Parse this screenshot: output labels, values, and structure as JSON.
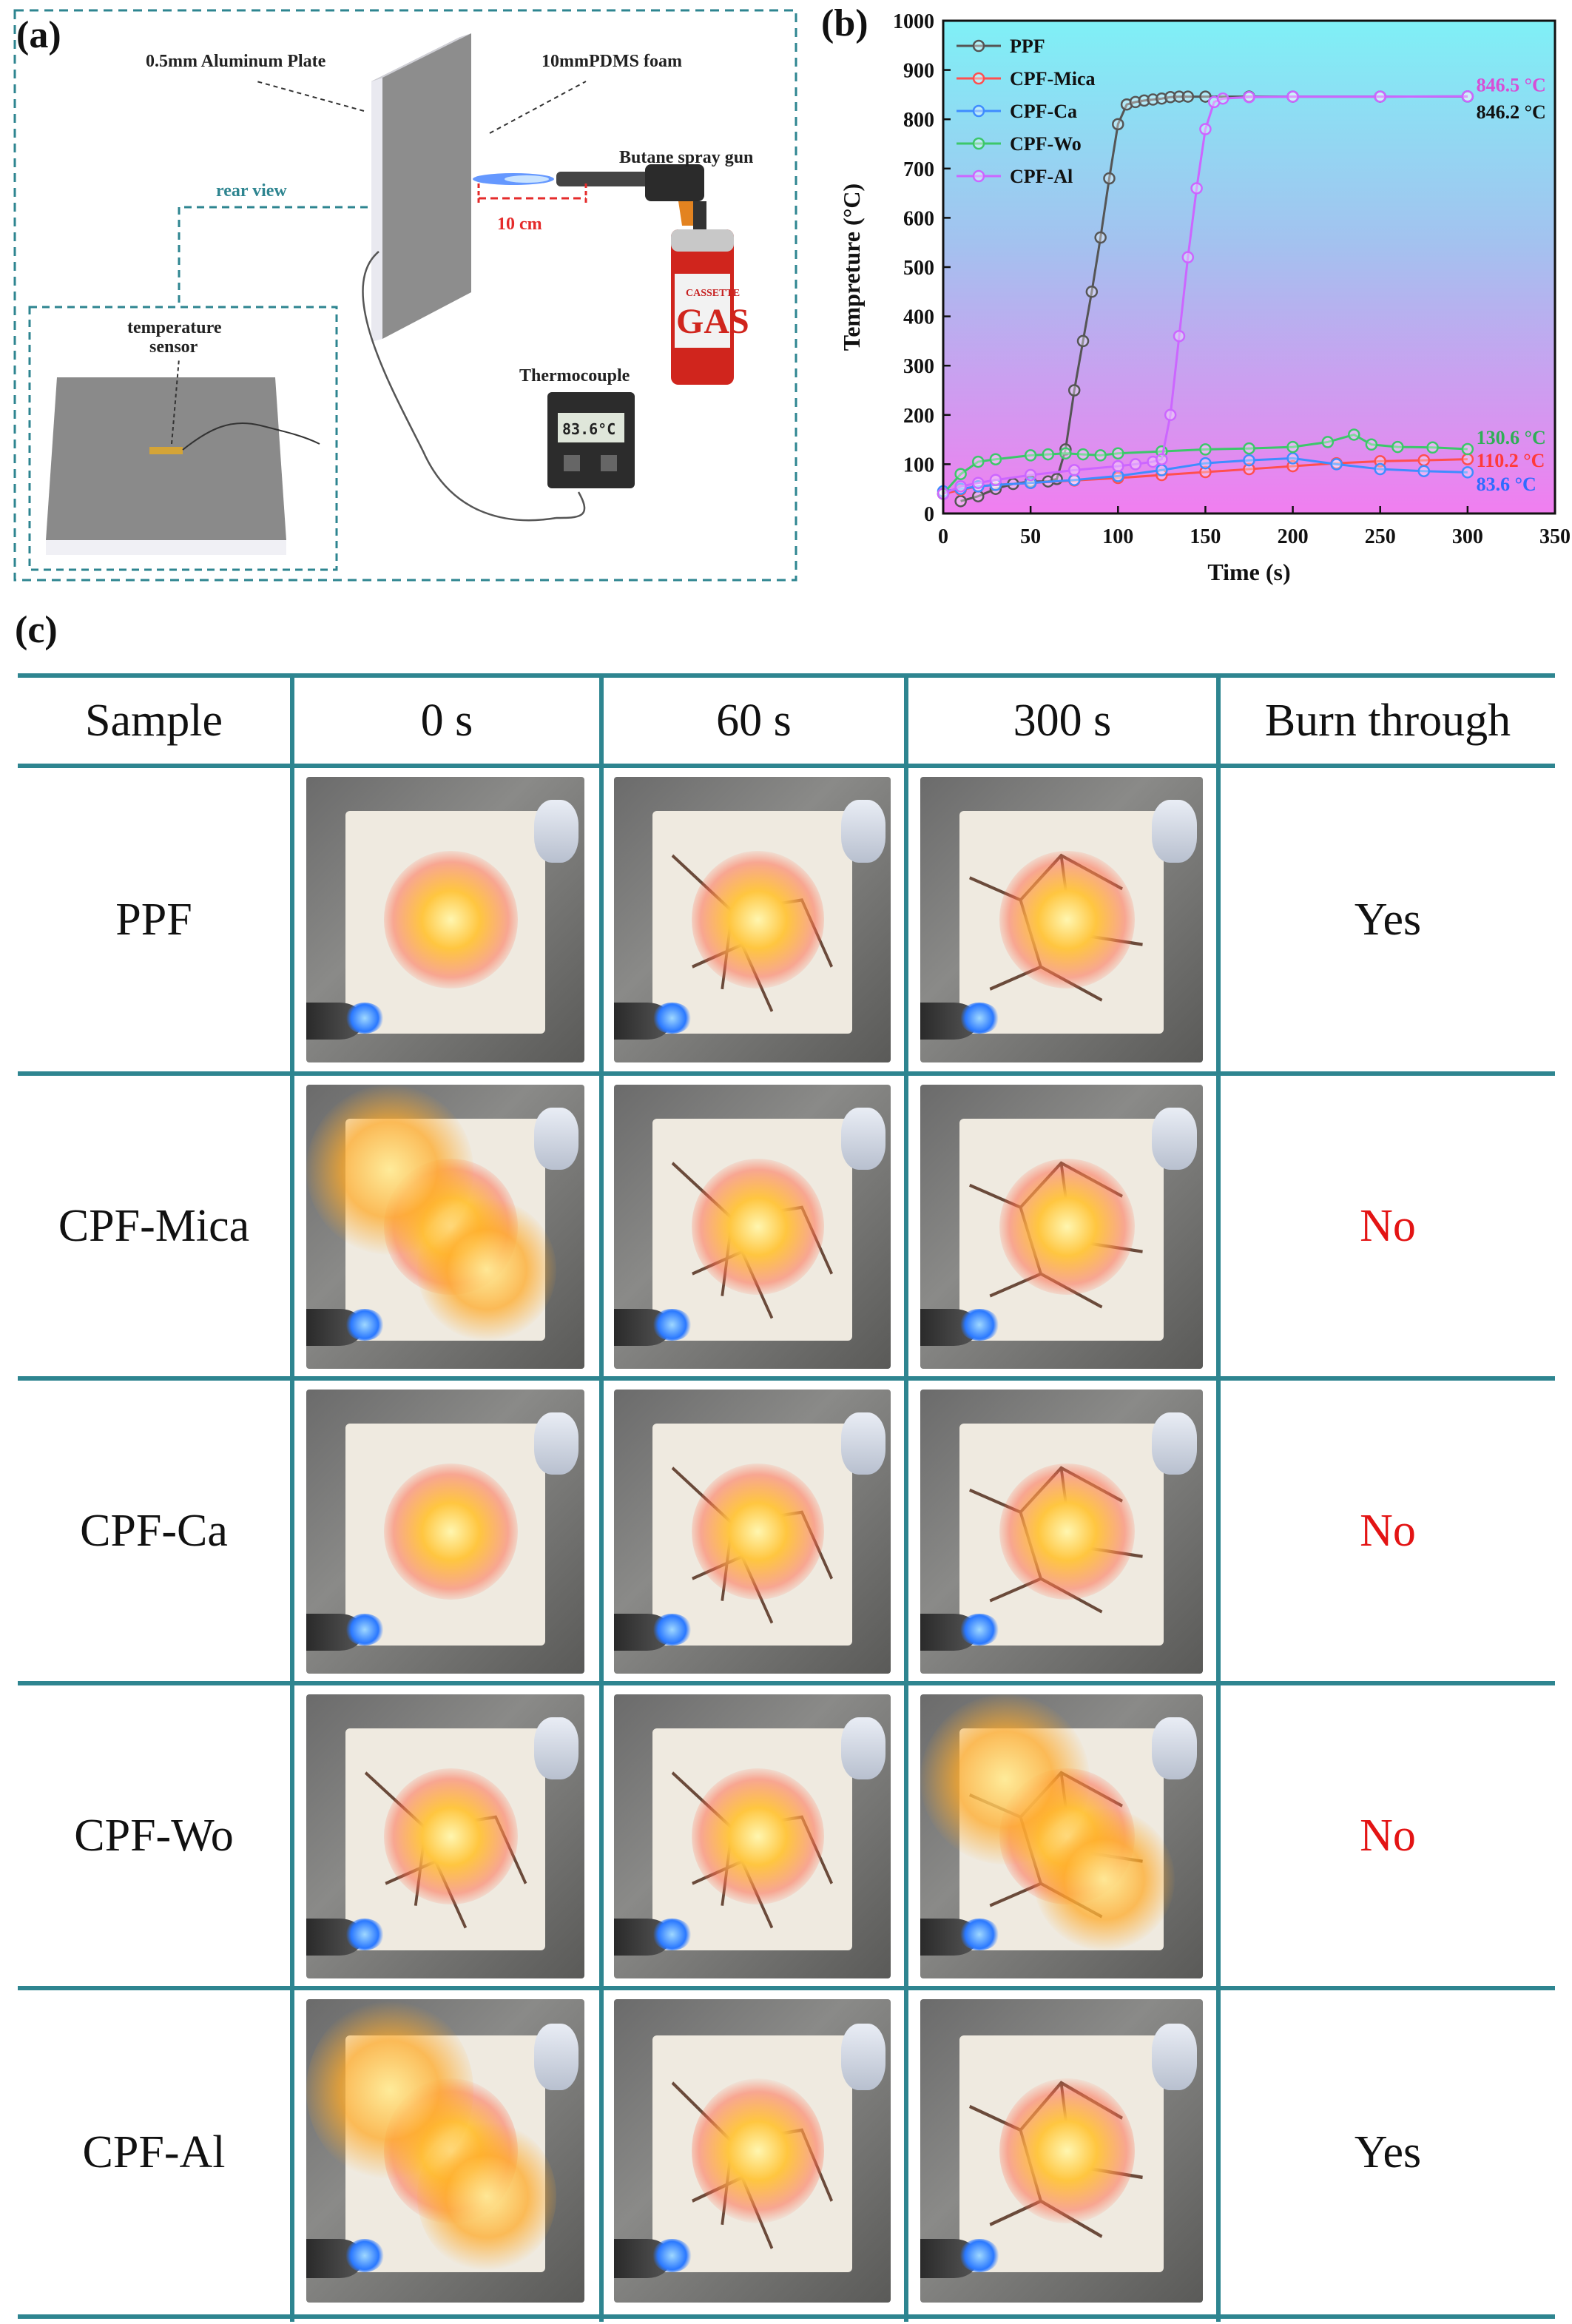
{
  "panel_labels": {
    "a": "(a)",
    "b": "(b)",
    "c": "(c)"
  },
  "setup": {
    "aluminum_plate": "0.5mm Aluminum Plate",
    "foam": "10mmPDMS  foam",
    "spray_gun": "Butane spray gun",
    "distance": "10 cm",
    "rear_view": "rear view",
    "sensor_line1": "temperature",
    "sensor_line2": "sensor",
    "thermocouple": "Thermocouple",
    "display_value": "83.6°C",
    "can_text1": "CASSETTE",
    "can_text2": "GAS"
  },
  "chart_data": {
    "type": "line",
    "xlabel": "Time (s)",
    "ylabel": "Tempreture (°C)",
    "xlim": [
      0,
      350
    ],
    "ylim": [
      0,
      1000
    ],
    "xticks": [
      0,
      50,
      100,
      150,
      200,
      250,
      300,
      350
    ],
    "yticks": [
      0,
      100,
      200,
      300,
      400,
      500,
      600,
      700,
      800,
      900,
      1000
    ],
    "legend_position": "top-left",
    "background": "gradient cyan to magenta",
    "series": [
      {
        "name": "PPF",
        "color": "#555555",
        "x": [
          10,
          20,
          30,
          40,
          50,
          60,
          65,
          70,
          75,
          80,
          85,
          90,
          95,
          100,
          105,
          110,
          115,
          120,
          125,
          130,
          135,
          140,
          150,
          175,
          200,
          250,
          300
        ],
        "y": [
          25,
          35,
          50,
          60,
          65,
          65,
          70,
          130,
          250,
          350,
          450,
          560,
          680,
          790,
          830,
          835,
          838,
          840,
          842,
          845,
          846,
          846,
          846,
          846,
          846,
          846,
          846.2
        ]
      },
      {
        "name": "CPF-Mica",
        "color": "#ff4f4f",
        "x": [
          0,
          10,
          20,
          30,
          50,
          75,
          100,
          125,
          150,
          175,
          200,
          225,
          250,
          275,
          300
        ],
        "y": [
          40,
          48,
          55,
          58,
          62,
          67,
          72,
          78,
          84,
          90,
          96,
          102,
          106,
          108,
          110.2
        ]
      },
      {
        "name": "CPF-Ca",
        "color": "#3f8cff",
        "x": [
          0,
          10,
          20,
          30,
          50,
          75,
          100,
          125,
          150,
          175,
          200,
          225,
          250,
          275,
          300
        ],
        "y": [
          45,
          50,
          55,
          58,
          62,
          68,
          76,
          88,
          102,
          108,
          112,
          100,
          90,
          86,
          83.6
        ]
      },
      {
        "name": "CPF-Wo",
        "color": "#3cc76a",
        "x": [
          0,
          10,
          20,
          30,
          50,
          60,
          70,
          80,
          90,
          100,
          125,
          150,
          175,
          200,
          220,
          235,
          245,
          260,
          280,
          300
        ],
        "y": [
          40,
          80,
          105,
          110,
          118,
          120,
          122,
          120,
          118,
          122,
          126,
          130,
          132,
          135,
          145,
          160,
          140,
          135,
          134,
          130.6
        ]
      },
      {
        "name": "CPF-Al",
        "color": "#cc66ff",
        "x": [
          0,
          10,
          20,
          30,
          50,
          75,
          100,
          110,
          120,
          125,
          130,
          135,
          140,
          145,
          150,
          155,
          160,
          175,
          200,
          250,
          300
        ],
        "y": [
          40,
          55,
          62,
          68,
          78,
          88,
          96,
          100,
          105,
          110,
          200,
          360,
          520,
          660,
          780,
          835,
          842,
          845,
          846,
          846,
          846.5
        ]
      }
    ],
    "annotations": [
      {
        "text": "846.5 °C",
        "color": "#d64fd6",
        "x": 305,
        "y": 870
      },
      {
        "text": "846.2 °C",
        "color": "#111111",
        "x": 305,
        "y": 815
      },
      {
        "text": "130.6 °C",
        "color": "#2fae56",
        "x": 305,
        "y": 155
      },
      {
        "text": "110.2 °C",
        "color": "#ff3a3a",
        "x": 305,
        "y": 108
      },
      {
        "text": "83.6 °C",
        "color": "#2f6bff",
        "x": 305,
        "y": 60
      }
    ]
  },
  "table": {
    "headers": [
      "Sample",
      "0 s",
      "60 s",
      "300 s",
      "Burn through"
    ],
    "rows": [
      {
        "sample": "PPF",
        "burn": "Yes"
      },
      {
        "sample": "CPF-Mica",
        "burn": "No"
      },
      {
        "sample": "CPF-Ca",
        "burn": "No"
      },
      {
        "sample": "CPF-Wo",
        "burn": "No"
      },
      {
        "sample": "CPF-Al",
        "burn": "Yes"
      }
    ]
  }
}
